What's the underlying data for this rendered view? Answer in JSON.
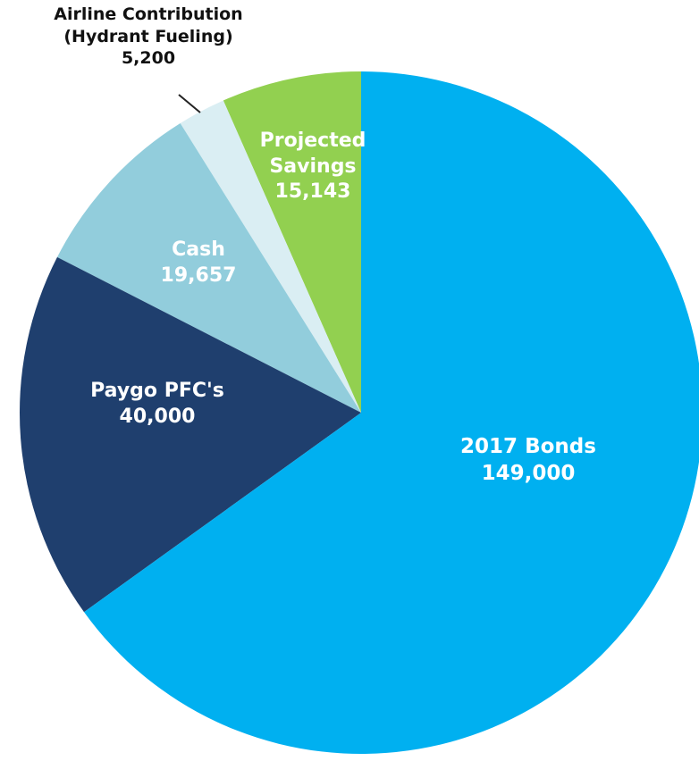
{
  "chart_data": {
    "type": "pie",
    "categories": [
      "2017 Bonds",
      "Paygo PFC's",
      "Cash",
      "Airline Contribution (Hydrant Fueling)",
      "Projected Savings"
    ],
    "values": [
      149000,
      40000,
      19657,
      5200,
      15143
    ],
    "value_labels": [
      "149,000",
      "40,000",
      "19,657",
      "5,200",
      "15,143"
    ],
    "colors": [
      "#00b0f0",
      "#1f3f6e",
      "#92cddc",
      "#daeef3",
      "#92d050"
    ]
  }
}
